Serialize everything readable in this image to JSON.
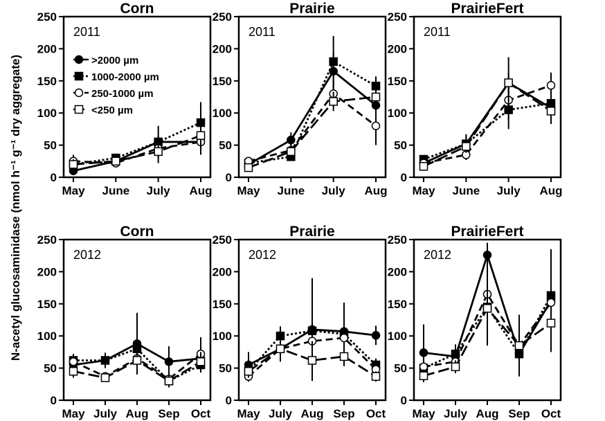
{
  "figure": {
    "ylabel": "N-acetyl glucosaminidase (nmol h⁻¹ g⁻¹ dry aggregate)",
    "ylim": [
      0,
      250
    ],
    "yticks": [
      0,
      50,
      100,
      150,
      200,
      250
    ],
    "legend": {
      "placement": "top-left of first panel",
      "entries": [
        {
          "name": ">2000 µm",
          "marker": "filled-circle",
          "line": "solid"
        },
        {
          "name": "1000-2000 µm",
          "marker": "filled-square",
          "line": "dotted"
        },
        {
          "name": "250-1000 µm",
          "marker": "open-circle",
          "line": "dashed"
        },
        {
          "name": "<250 µm",
          "marker": "open-square",
          "line": "long-dash"
        }
      ]
    }
  },
  "chart_data": [
    {
      "type": "line",
      "title": "Corn",
      "year": "2011",
      "categories": [
        "May",
        "June",
        "July",
        "Aug"
      ],
      "ylim": [
        0,
        250
      ],
      "series": [
        {
          "name": ">2000 µm",
          "values": [
            10,
            25,
            55,
            55
          ],
          "err": [
            6,
            4,
            10,
            20
          ]
        },
        {
          "name": "1000-2000 µm",
          "values": [
            20,
            30,
            55,
            85
          ],
          "err": [
            8,
            5,
            25,
            32
          ]
        },
        {
          "name": "250-1000 µm",
          "values": [
            25,
            22,
            45,
            55
          ],
          "err": [
            10,
            4,
            10,
            10
          ]
        },
        {
          "name": "<250 µm",
          "values": [
            20,
            25,
            40,
            65
          ],
          "err": [
            8,
            4,
            18,
            25
          ]
        }
      ]
    },
    {
      "type": "line",
      "title": "Prairie",
      "year": "2011",
      "categories": [
        "May",
        "June",
        "July",
        "Aug"
      ],
      "ylim": [
        0,
        250
      ],
      "series": [
        {
          "name": ">2000 µm",
          "values": [
            20,
            58,
            165,
            112
          ],
          "err": [
            4,
            12,
            30,
            20
          ]
        },
        {
          "name": "1000-2000 µm",
          "values": [
            22,
            32,
            180,
            142
          ],
          "err": [
            4,
            6,
            40,
            15
          ]
        },
        {
          "name": "250-1000 µm",
          "values": [
            25,
            42,
            130,
            80
          ],
          "err": [
            4,
            10,
            20,
            30
          ]
        },
        {
          "name": "<250 µm",
          "values": [
            15,
            40,
            118,
            125
          ],
          "err": [
            4,
            8,
            15,
            15
          ]
        }
      ]
    },
    {
      "type": "line",
      "title": "PrairieFert",
      "year": "2011",
      "categories": [
        "May",
        "June",
        "July",
        "Aug"
      ],
      "ylim": [
        0,
        250
      ],
      "series": [
        {
          "name": ">2000 µm",
          "values": [
            22,
            52,
            147,
            108
          ],
          "err": [
            5,
            15,
            15,
            25
          ]
        },
        {
          "name": "1000-2000 µm",
          "values": [
            28,
            52,
            105,
            115
          ],
          "err": [
            6,
            12,
            30,
            15
          ]
        },
        {
          "name": "250-1000 µm",
          "values": [
            22,
            35,
            120,
            143
          ],
          "err": [
            5,
            8,
            30,
            20
          ]
        },
        {
          "name": "<250 µm",
          "values": [
            17,
            48,
            147,
            103
          ],
          "err": [
            5,
            10,
            40,
            20
          ]
        }
      ]
    },
    {
      "type": "line",
      "title": "Corn",
      "year": "2012",
      "categories": [
        "May",
        "July",
        "Aug",
        "Sep",
        "Oct"
      ],
      "ylim": [
        0,
        250
      ],
      "series": [
        {
          "name": ">2000 µm",
          "values": [
            55,
            62,
            88,
            60,
            65
          ],
          "err": [
            12,
            12,
            48,
            24,
            14
          ]
        },
        {
          "name": "1000-2000 µm",
          "values": [
            62,
            62,
            80,
            30,
            55
          ],
          "err": [
            10,
            10,
            28,
            10,
            12
          ]
        },
        {
          "name": "250-1000 µm",
          "values": [
            60,
            37,
            65,
            33,
            72
          ],
          "err": [
            10,
            5,
            18,
            8,
            26
          ]
        },
        {
          "name": "<250 µm",
          "values": [
            45,
            35,
            62,
            30,
            60
          ],
          "err": [
            10,
            5,
            20,
            8,
            15
          ]
        }
      ]
    },
    {
      "type": "line",
      "title": "Prairie",
      "year": "2012",
      "categories": [
        "May",
        "July",
        "Aug",
        "Sep",
        "Oct"
      ],
      "ylim": [
        0,
        250
      ],
      "series": [
        {
          "name": ">2000 µm",
          "values": [
            55,
            80,
            110,
            107,
            101
          ],
          "err": [
            20,
            15,
            80,
            45,
            15
          ]
        },
        {
          "name": "1000-2000 µm",
          "values": [
            45,
            100,
            108,
            103,
            55
          ],
          "err": [
            10,
            15,
            20,
            20,
            10
          ]
        },
        {
          "name": "250-1000 µm",
          "values": [
            37,
            80,
            92,
            97,
            48
          ],
          "err": [
            8,
            20,
            25,
            30,
            10
          ]
        },
        {
          "name": "<250 µm",
          "values": [
            45,
            80,
            62,
            68,
            37
          ],
          "err": [
            10,
            15,
            30,
            15,
            8
          ]
        }
      ]
    },
    {
      "type": "line",
      "title": "PrairieFert",
      "year": "2012",
      "categories": [
        "May",
        "July",
        "Aug",
        "Sep",
        "Oct"
      ],
      "ylim": [
        0,
        250
      ],
      "series": [
        {
          "name": ">2000 µm",
          "values": [
            74,
            68,
            226,
            72,
            155
          ],
          "err": [
            44,
            10,
            15,
            20,
            80
          ]
        },
        {
          "name": "1000-2000 µm",
          "values": [
            50,
            72,
            145,
            72,
            163
          ],
          "err": [
            15,
            15,
            40,
            15,
            30
          ]
        },
        {
          "name": "250-1000 µm",
          "values": [
            52,
            60,
            165,
            85,
            152
          ],
          "err": [
            15,
            12,
            80,
            48,
            15
          ]
        },
        {
          "name": "<250 µm",
          "values": [
            38,
            52,
            143,
            85,
            120
          ],
          "err": [
            10,
            10,
            30,
            30,
            25
          ]
        }
      ]
    }
  ]
}
